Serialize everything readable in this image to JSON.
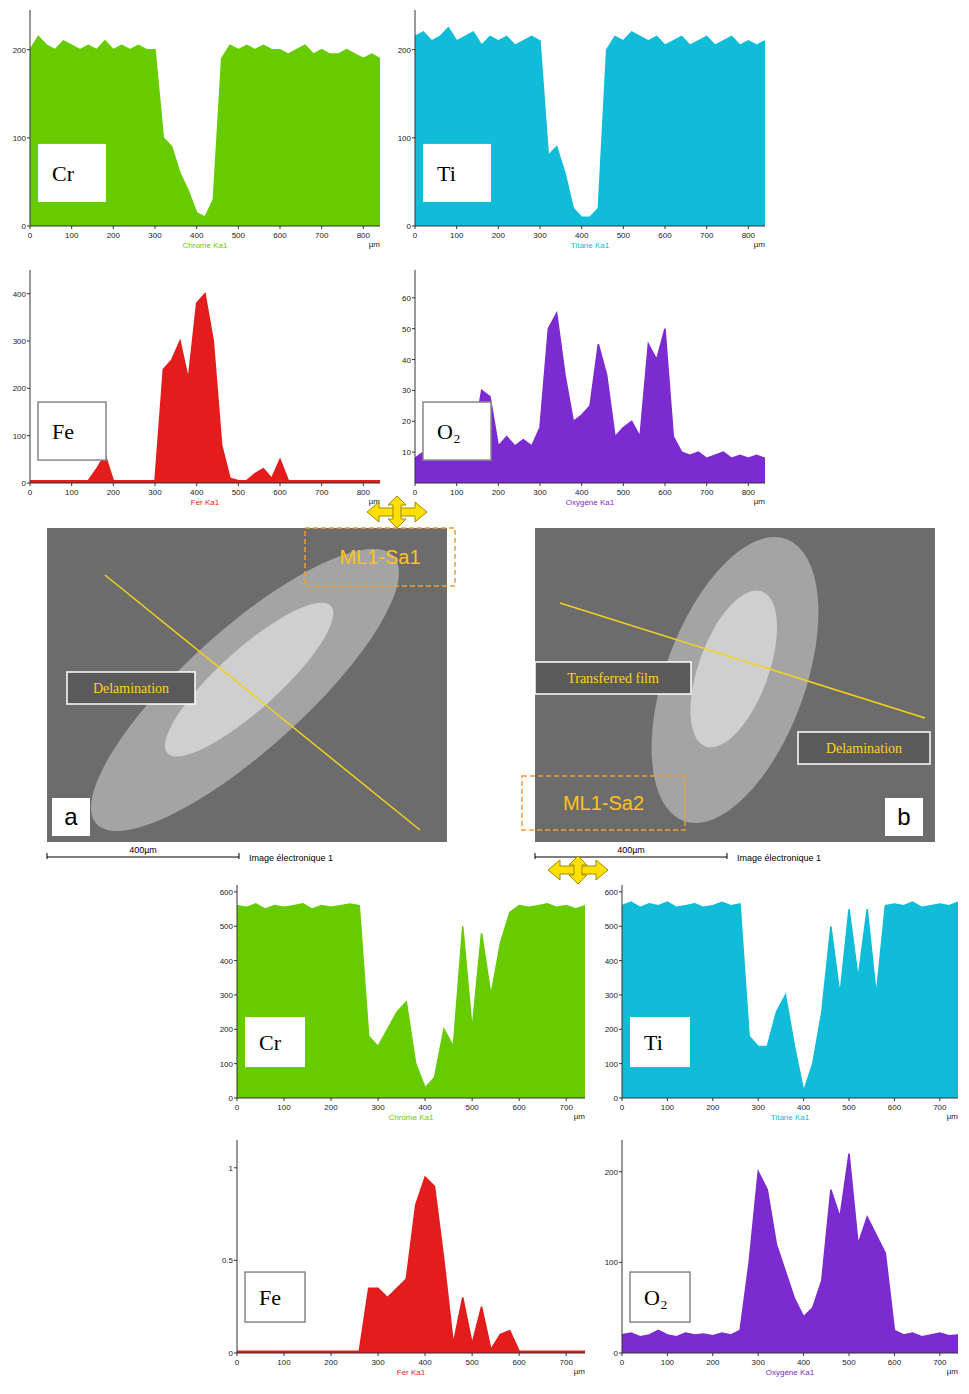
{
  "chart_data": [
    {
      "type": "area",
      "title": "Cr",
      "xlabel": "µm",
      "x": [
        0,
        20,
        40,
        60,
        80,
        100,
        120,
        140,
        160,
        180,
        200,
        220,
        240,
        260,
        280,
        300,
        320,
        340,
        360,
        380,
        400,
        420,
        440,
        460,
        480,
        500,
        520,
        540,
        560,
        580,
        600,
        620,
        640,
        660,
        680,
        700,
        720,
        740,
        760,
        780,
        800,
        820,
        840
      ],
      "xlim": [
        0,
        840
      ],
      "xticks": [
        0,
        100,
        200,
        300,
        400,
        500,
        600,
        700,
        800
      ],
      "ylim": [
        0,
        245
      ],
      "yticks": [
        0,
        100,
        200
      ],
      "series": [
        {
          "name": "Chrome Ka1",
          "color": "#66cc00",
          "values": [
            200,
            215,
            205,
            200,
            210,
            205,
            200,
            205,
            200,
            210,
            200,
            205,
            200,
            205,
            200,
            200,
            100,
            90,
            60,
            40,
            15,
            10,
            30,
            190,
            205,
            200,
            205,
            200,
            205,
            200,
            200,
            195,
            200,
            205,
            195,
            200,
            195,
            195,
            200,
            195,
            190,
            195,
            190
          ]
        }
      ]
    },
    {
      "type": "area",
      "title": "Ti",
      "xlabel": "µm",
      "x": [
        0,
        20,
        40,
        60,
        80,
        100,
        120,
        140,
        160,
        180,
        200,
        220,
        240,
        260,
        280,
        300,
        320,
        340,
        360,
        380,
        400,
        420,
        440,
        460,
        480,
        500,
        520,
        540,
        560,
        580,
        600,
        620,
        640,
        660,
        680,
        700,
        720,
        740,
        760,
        780,
        800,
        820,
        840
      ],
      "xlim": [
        0,
        840
      ],
      "xticks": [
        0,
        100,
        200,
        300,
        400,
        500,
        600,
        700,
        800
      ],
      "ylim": [
        0,
        245
      ],
      "yticks": [
        0,
        100,
        200
      ],
      "series": [
        {
          "name": "Titane Ka1",
          "color": "#10bcd8",
          "values": [
            215,
            220,
            210,
            215,
            225,
            210,
            215,
            220,
            205,
            215,
            210,
            215,
            205,
            210,
            215,
            210,
            80,
            90,
            60,
            20,
            10,
            10,
            20,
            200,
            215,
            210,
            220,
            215,
            210,
            215,
            205,
            210,
            215,
            205,
            210,
            215,
            205,
            210,
            215,
            205,
            210,
            205,
            210
          ]
        }
      ]
    },
    {
      "type": "area",
      "title": "Fe",
      "xlabel": "µm",
      "x": [
        0,
        20,
        40,
        60,
        80,
        100,
        120,
        140,
        160,
        180,
        200,
        220,
        240,
        260,
        280,
        300,
        320,
        340,
        360,
        380,
        400,
        420,
        440,
        460,
        480,
        500,
        520,
        540,
        560,
        580,
        600,
        620,
        640,
        660,
        680,
        700,
        720,
        740,
        760,
        780,
        800,
        820,
        840
      ],
      "xlim": [
        0,
        840
      ],
      "xticks": [
        0,
        100,
        200,
        300,
        400,
        500,
        600,
        700,
        800
      ],
      "ylim": [
        0,
        450
      ],
      "yticks": [
        0,
        100,
        200,
        300,
        400
      ],
      "series": [
        {
          "name": "Fer Ka1",
          "color": "#e31c1c",
          "values": [
            5,
            5,
            5,
            5,
            5,
            5,
            5,
            5,
            30,
            60,
            5,
            5,
            5,
            5,
            5,
            5,
            240,
            260,
            300,
            220,
            380,
            400,
            300,
            80,
            10,
            5,
            5,
            20,
            30,
            10,
            50,
            5,
            5,
            5,
            5,
            5,
            5,
            5,
            5,
            5,
            5,
            5,
            5
          ]
        }
      ]
    },
    {
      "type": "area",
      "title": "O₂",
      "xlabel": "µm",
      "x": [
        0,
        20,
        40,
        60,
        80,
        100,
        120,
        140,
        160,
        180,
        200,
        220,
        240,
        260,
        280,
        300,
        320,
        340,
        360,
        380,
        400,
        420,
        440,
        460,
        480,
        500,
        520,
        540,
        560,
        580,
        600,
        620,
        640,
        660,
        680,
        700,
        720,
        740,
        760,
        780,
        800,
        820,
        840
      ],
      "xlim": [
        0,
        840
      ],
      "xticks": [
        0,
        100,
        200,
        300,
        400,
        500,
        600,
        700,
        800
      ],
      "ylim": [
        0,
        69
      ],
      "yticks": [
        10,
        20,
        30,
        40,
        50,
        60
      ],
      "series": [
        {
          "name": "Oxygène Ka1",
          "color": "#7b2bd0",
          "values": [
            8,
            10,
            9,
            12,
            10,
            11,
            9,
            14,
            30,
            28,
            12,
            15,
            12,
            14,
            12,
            18,
            50,
            55,
            35,
            20,
            22,
            25,
            45,
            35,
            15,
            18,
            20,
            15,
            45,
            40,
            50,
            15,
            10,
            9,
            10,
            8,
            9,
            10,
            8,
            9,
            8,
            9,
            8
          ]
        }
      ]
    },
    {
      "type": "area",
      "title": "Cr",
      "xlabel": "µm",
      "x": [
        0,
        20,
        40,
        60,
        80,
        100,
        120,
        140,
        160,
        180,
        200,
        220,
        240,
        260,
        280,
        300,
        320,
        340,
        360,
        380,
        400,
        420,
        440,
        460,
        480,
        500,
        520,
        540,
        560,
        580,
        600,
        620,
        640,
        660,
        680,
        700,
        720,
        740
      ],
      "xlim": [
        0,
        740
      ],
      "xticks": [
        0,
        100,
        200,
        300,
        400,
        500,
        600,
        700
      ],
      "ylim": [
        0,
        620
      ],
      "yticks": [
        0,
        100,
        200,
        300,
        400,
        500,
        600
      ],
      "series": [
        {
          "name": "Chrome Ka1",
          "color": "#66cc00",
          "values": [
            560,
            555,
            565,
            550,
            560,
            555,
            560,
            565,
            550,
            560,
            555,
            560,
            565,
            560,
            180,
            150,
            200,
            250,
            280,
            100,
            30,
            60,
            200,
            150,
            500,
            200,
            480,
            300,
            450,
            540,
            560,
            555,
            560,
            565,
            555,
            560,
            550,
            560
          ]
        }
      ]
    },
    {
      "type": "area",
      "title": "Ti",
      "xlabel": "µm",
      "x": [
        0,
        20,
        40,
        60,
        80,
        100,
        120,
        140,
        160,
        180,
        200,
        220,
        240,
        260,
        280,
        300,
        320,
        340,
        360,
        380,
        400,
        420,
        440,
        460,
        480,
        500,
        520,
        540,
        560,
        580,
        600,
        620,
        640,
        660,
        680,
        700,
        720,
        740
      ],
      "xlim": [
        0,
        740
      ],
      "xticks": [
        0,
        100,
        200,
        300,
        400,
        500,
        600,
        700
      ],
      "ylim": [
        0,
        620
      ],
      "yticks": [
        0,
        100,
        200,
        300,
        400,
        500,
        600
      ],
      "series": [
        {
          "name": "Titane Ka1",
          "color": "#10bcd8",
          "values": [
            560,
            570,
            555,
            565,
            560,
            570,
            555,
            560,
            565,
            555,
            560,
            570,
            560,
            565,
            180,
            150,
            150,
            250,
            300,
            150,
            20,
            100,
            250,
            500,
            300,
            550,
            350,
            550,
            300,
            560,
            565,
            560,
            570,
            555,
            560,
            565,
            560,
            570
          ]
        }
      ]
    },
    {
      "type": "area",
      "title": "Fe",
      "xlabel": "µm",
      "x": [
        0,
        20,
        40,
        60,
        80,
        100,
        120,
        140,
        160,
        180,
        200,
        220,
        240,
        260,
        280,
        300,
        320,
        340,
        360,
        380,
        400,
        420,
        440,
        460,
        480,
        500,
        520,
        540,
        560,
        580,
        600,
        620,
        640,
        660,
        680,
        700,
        720,
        740
      ],
      "xlim": [
        0,
        740
      ],
      "xticks": [
        0,
        100,
        200,
        300,
        400,
        500,
        600,
        700
      ],
      "ylim": [
        0,
        1.15
      ],
      "yticks": [
        0,
        0.5,
        1
      ],
      "series": [
        {
          "name": "Fer Ka1",
          "color": "#e31c1c",
          "values": [
            0.01,
            0.01,
            0.01,
            0.01,
            0.01,
            0.01,
            0.01,
            0.01,
            0.01,
            0.01,
            0.01,
            0.01,
            0.01,
            0.01,
            0.35,
            0.35,
            0.3,
            0.35,
            0.4,
            0.8,
            0.95,
            0.9,
            0.5,
            0.05,
            0.3,
            0.05,
            0.25,
            0.02,
            0.1,
            0.12,
            0.01,
            0.01,
            0.01,
            0.01,
            0.01,
            0.01,
            0.01,
            0.01
          ]
        }
      ]
    },
    {
      "type": "area",
      "title": "O₂",
      "xlabel": "µm",
      "x": [
        0,
        20,
        40,
        60,
        80,
        100,
        120,
        140,
        160,
        180,
        200,
        220,
        240,
        260,
        280,
        300,
        320,
        340,
        360,
        380,
        400,
        420,
        440,
        460,
        480,
        500,
        520,
        540,
        560,
        580,
        600,
        620,
        640,
        660,
        680,
        700,
        720,
        740
      ],
      "xlim": [
        0,
        740
      ],
      "xticks": [
        0,
        100,
        200,
        300,
        400,
        500,
        600,
        700
      ],
      "ylim": [
        0,
        235
      ],
      "yticks": [
        0,
        100,
        200
      ],
      "series": [
        {
          "name": "Oxygène Ka1",
          "color": "#7b2bd0",
          "values": [
            20,
            22,
            18,
            20,
            25,
            20,
            18,
            22,
            20,
            21,
            19,
            22,
            20,
            25,
            100,
            200,
            180,
            120,
            90,
            60,
            40,
            50,
            80,
            180,
            150,
            220,
            120,
            150,
            130,
            110,
            25,
            20,
            22,
            18,
            20,
            22,
            19,
            20
          ]
        }
      ]
    }
  ],
  "images": [
    {
      "letter": "a",
      "tag": "ML1-Sa1",
      "labels": [
        "Delamination"
      ],
      "scale_bar": "400µm",
      "caption": "Image électronique 1"
    },
    {
      "letter": "b",
      "tag": "ML1-Sa2",
      "labels": [
        "Transferred film",
        "Delamination"
      ],
      "scale_bar": "400µm",
      "caption": "Image électronique 1"
    }
  ]
}
